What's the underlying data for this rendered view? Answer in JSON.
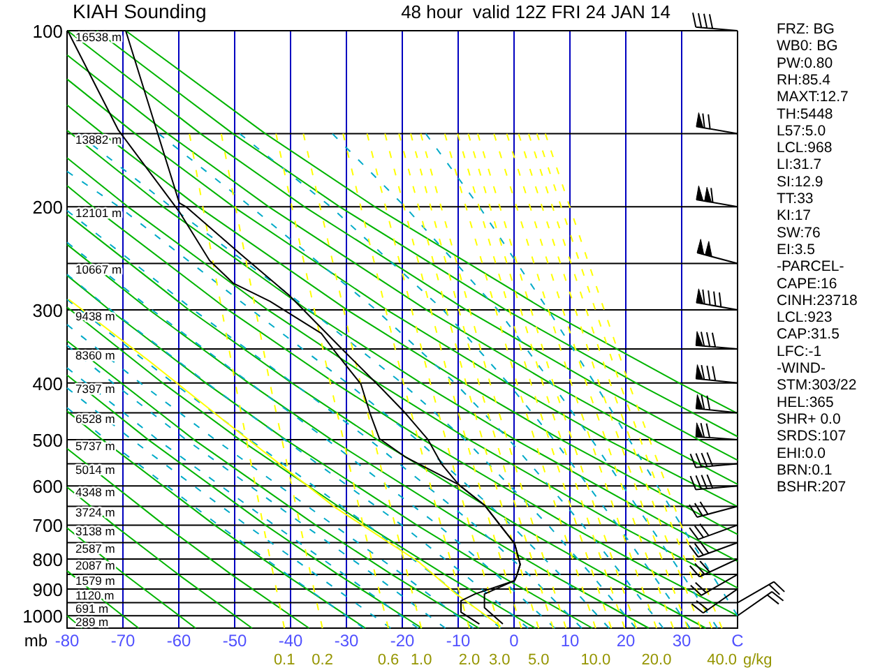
{
  "chart_data": {
    "type": "line",
    "title": "KIAH Sounding",
    "subtitle": "48 hour  valid 12Z FRI 24 JAN 14",
    "ylabel": "mb",
    "xlim": [
      -80,
      40
    ],
    "ylim": [
      1050,
      100
    ],
    "log": "y",
    "grid": "x",
    "xticks": [
      -80,
      -70,
      -60,
      -50,
      -40,
      -30,
      -20,
      -10,
      0,
      10,
      20,
      30,
      {
        "value": 40,
        "label": "C"
      }
    ],
    "yticks": [
      100,
      200,
      300,
      400,
      500,
      600,
      700,
      800,
      900,
      1000
    ],
    "series": [
      {
        "name": "16538 m",
        "color": "#000000",
        "x": [
          -80,
          40
        ],
        "values": [
          100,
          100
        ]
      },
      {
        "name": "13882 m",
        "color": "#000000",
        "x": [
          -80,
          40
        ],
        "values": [
          150,
          150
        ]
      },
      {
        "name": "12101 m",
        "color": "#000000",
        "x": [
          -80,
          40
        ],
        "values": [
          200,
          200
        ]
      },
      {
        "name": "10667 m",
        "color": "#000000",
        "x": [
          -80,
          40
        ],
        "values": [
          250,
          250
        ]
      },
      {
        "name": "9438 m",
        "color": "#000000",
        "x": [
          -80,
          40
        ],
        "values": [
          300,
          300
        ]
      },
      {
        "name": "8360 m",
        "color": "#000000",
        "x": [
          -80,
          40
        ],
        "values": [
          350,
          350
        ]
      },
      {
        "name": "7397 m",
        "color": "#000000",
        "x": [
          -80,
          40
        ],
        "values": [
          400,
          400
        ]
      },
      {
        "name": "6528 m",
        "color": "#000000",
        "x": [
          -80,
          40
        ],
        "values": [
          450,
          450
        ]
      },
      {
        "name": "5737 m",
        "color": "#000000",
        "x": [
          -80,
          40
        ],
        "values": [
          500,
          500
        ]
      },
      {
        "name": "5014 m",
        "color": "#000000",
        "x": [
          -80,
          40
        ],
        "values": [
          550,
          550
        ]
      },
      {
        "name": "4348 m",
        "color": "#000000",
        "x": [
          -80,
          40
        ],
        "values": [
          600,
          600
        ]
      },
      {
        "name": "3724 m",
        "color": "#000000",
        "x": [
          -80,
          40
        ],
        "values": [
          650,
          650
        ]
      },
      {
        "name": "3138 m",
        "color": "#000000",
        "x": [
          -80,
          40
        ],
        "values": [
          700,
          700
        ]
      },
      {
        "name": "2587 m",
        "color": "#000000",
        "x": [
          -80,
          40
        ],
        "values": [
          750,
          750
        ]
      },
      {
        "name": "2087 m",
        "color": "#000000",
        "x": [
          -80,
          40
        ],
        "values": [
          800,
          800
        ]
      },
      {
        "name": "1579 m",
        "color": "#000000",
        "x": [
          -80,
          40
        ],
        "values": [
          850,
          850
        ]
      },
      {
        "name": "1120 m",
        "color": "#000000",
        "x": [
          -80,
          40
        ],
        "values": [
          900,
          900
        ]
      },
      {
        "name": "691 m",
        "color": "#000000",
        "x": [
          -80,
          40
        ],
        "values": [
          950,
          950
        ]
      },
      {
        "name": "289 m",
        "color": "#000000",
        "x": [
          -80,
          40
        ],
        "values": [
          1000,
          1000
        ]
      },
      {
        "color": "#00b400",
        "x": [
          -80,
          -77.3
        ],
        "values": [
          1000,
          1050
        ]
      },
      {
        "color": "#00b400",
        "x": [
          -80,
          -73,
          -67.2
        ],
        "values": [
          838,
          950,
          1050
        ]
      },
      {
        "color": "#00b400",
        "x": [
          -80,
          -69.7,
          -57
        ],
        "values": [
          708,
          850,
          1050
        ]
      },
      {
        "color": "#00b400",
        "x": [
          -80,
          -71.6,
          -60.1,
          -46.9
        ],
        "values": [
          603,
          700,
          850,
          1050
        ]
      },
      {
        "color": "#00b400",
        "x": [
          -80,
          -62.6,
          -50.6,
          -36.7
        ],
        "values": [
          518,
          700,
          850,
          1050
        ]
      },
      {
        "color": "#00b400",
        "x": [
          -80,
          -73.7,
          -53.6,
          -41,
          -26.6
        ],
        "values": [
          447,
          500,
          700,
          850,
          1050
        ]
      },
      {
        "color": "#00b400",
        "x": [
          -80,
          -65.5,
          -44.5,
          -31.5,
          -16.5
        ],
        "values": [
          388,
          500,
          700,
          850,
          1050
        ]
      },
      {
        "color": "#00b400",
        "x": [
          -80,
          -57.3,
          -35.5,
          -21.9,
          -6.3
        ],
        "values": [
          339,
          500,
          700,
          850,
          1050
        ]
      },
      {
        "color": "#00b400",
        "x": [
          -80,
          -62.9,
          -49.1,
          -26.5,
          -12.4,
          3.8
        ],
        "values": [
          297,
          400,
          500,
          700,
          850,
          1050
        ]
      },
      {
        "color": "#00b400",
        "x": [
          -80,
          -72.4,
          -55.2,
          -40.9,
          -17.4,
          -2.9,
          14
        ],
        "values": [
          262,
          300,
          400,
          500,
          700,
          850,
          1050
        ]
      },
      {
        "color": "#00b400",
        "x": [
          -80,
          -65.3,
          -47.5,
          -32.7,
          -8.4,
          6.7,
          24.1
        ],
        "values": [
          232,
          300,
          400,
          500,
          700,
          850,
          1050
        ]
      },
      {
        "color": "#00b400",
        "x": [
          -80,
          -58.2,
          -39.8,
          -24.5,
          0.6,
          16.3,
          34.3
        ],
        "values": [
          206,
          300,
          400,
          500,
          700,
          850,
          1050
        ]
      },
      {
        "color": "#00b400",
        "x": [
          -80,
          -75.4,
          -51.2,
          -32.1,
          -16.3,
          9.7,
          25.8,
          40
        ],
        "values": [
          184,
          200,
          300,
          400,
          500,
          700,
          850,
          1000
        ]
      },
      {
        "color": "#00b400",
        "x": [
          -80,
          -69.1,
          -44.1,
          -24.4,
          -8.1,
          18.7,
          40
        ],
        "values": [
          165,
          200,
          300,
          400,
          500,
          700,
          896
        ]
      },
      {
        "color": "#00b400",
        "x": [
          -80,
          -62.8,
          -37,
          -16.7,
          0.2,
          27.7,
          40
        ],
        "values": [
          148,
          200,
          300,
          400,
          500,
          700,
          807
        ]
      },
      {
        "color": "#00b400",
        "x": [
          -80,
          -73.6,
          -56.5,
          -29.9,
          -9,
          8.4,
          36.8,
          40
        ],
        "values": [
          134,
          150,
          200,
          300,
          400,
          500,
          700,
          726
        ]
      },
      {
        "color": "#00b400",
        "x": [
          -80,
          -67.8,
          -50.2,
          -22.8,
          -1.3,
          16.6,
          40
        ],
        "values": [
          121,
          150,
          200,
          300,
          400,
          500,
          651
        ]
      },
      {
        "color": "#00b400",
        "x": [
          -80,
          -62,
          -43.9,
          -15.7,
          6.4,
          24.8,
          40
        ],
        "values": [
          110,
          150,
          200,
          300,
          400,
          500,
          596
        ]
      },
      {
        "color": "#00b400",
        "x": [
          -79.9,
          -56.1,
          -37.5,
          -8.6,
          14.1,
          33,
          40
        ],
        "values": [
          100,
          150,
          200,
          300,
          400,
          500,
          542
        ]
      },
      {
        "color": "#00b400",
        "x": [
          -74.7,
          -50.3,
          -31.2,
          -1.5,
          21.8,
          40
        ],
        "values": [
          100,
          150,
          200,
          300,
          400,
          494
        ]
      },
      {
        "color": "#00b400",
        "x": [
          -69.5,
          -44.5,
          -24.9,
          5.6,
          29.5,
          40
        ],
        "values": [
          100,
          150,
          200,
          300,
          400,
          451
        ]
      },
      {
        "color": "#00aac8",
        "line_style": "dashed",
        "x": [
          -80,
          -73,
          -52.9,
          -40.6,
          -26.9
        ],
        "values": [
          441,
          500,
          700,
          850,
          1050
        ]
      },
      {
        "color": "#00aac8",
        "line_style": "dashed",
        "x": [
          -80,
          -68.4,
          -47.9,
          -35.5,
          -22.1
        ],
        "values": [
          408,
          500,
          700,
          850,
          1050
        ]
      },
      {
        "color": "#00aac8",
        "line_style": "dashed",
        "x": [
          -80,
          -63.8,
          -42.9,
          -30.4,
          -17.2
        ],
        "values": [
          377,
          500,
          700,
          850,
          1050
        ]
      },
      {
        "color": "#00aac8",
        "line_style": "dashed",
        "x": [
          -80,
          -71.8,
          -58.7,
          -37.6,
          -25.2,
          -12.3
        ],
        "values": [
          345,
          400,
          500,
          700,
          850,
          1050
        ]
      },
      {
        "color": "#00aac8",
        "line_style": "dashed",
        "x": [
          -80,
          -66.9,
          -53.5,
          -32.3,
          -20,
          -7.3
        ],
        "values": [
          318,
          400,
          500,
          700,
          850,
          1050
        ]
      },
      {
        "color": "#00aac8",
        "line_style": "dashed",
        "x": [
          -80,
          -61,
          -47.3,
          -26.2,
          -14.5,
          -2.4
        ],
        "values": [
          288,
          400,
          500,
          700,
          850,
          1050
        ]
      },
      {
        "color": "#00aac8",
        "line_style": "dashed",
        "x": [
          -80,
          -72.2,
          -55,
          -41.1,
          -20.1,
          -8.9,
          2.5
        ],
        "values": [
          261,
          300,
          400,
          500,
          700,
          850,
          1050
        ]
      },
      {
        "color": "#00aac8",
        "line_style": "dashed",
        "x": [
          -80,
          -64.8,
          -47.3,
          -33.5,
          -13.6,
          -3.2,
          7.3
        ],
        "values": [
          230,
          300,
          400,
          500,
          700,
          850,
          1050
        ]
      },
      {
        "color": "#00aac8",
        "line_style": "dashed",
        "x": [
          -80,
          -57.4,
          -39.6,
          -25.9,
          -7,
          2.6,
          12.1
        ],
        "values": [
          203,
          300,
          400,
          500,
          700,
          850,
          1050
        ]
      },
      {
        "color": "#00aac8",
        "line_style": "dashed",
        "x": [
          -80,
          -70.7,
          -47,
          -29.9,
          -17.4,
          -0.5,
          8.2,
          17
        ],
        "values": [
          174,
          200,
          300,
          400,
          500,
          700,
          850,
          1050
        ]
      },
      {
        "color": "#00aac8",
        "line_style": "dashed",
        "x": [
          -78,
          -61.4,
          -36.6,
          -20.1,
          -8.8,
          6.1,
          13.8,
          21.8
        ],
        "values": [
          150,
          200,
          300,
          400,
          500,
          700,
          850,
          1050
        ]
      },
      {
        "color": "#00aac8",
        "line_style": "dashed",
        "x": [
          -63.6,
          -47.1,
          -24.7,
          -10.6,
          -0.9,
          12.3,
          19.3,
          26.7
        ],
        "values": [
          150,
          200,
          300,
          400,
          500,
          700,
          850,
          1050
        ]
      },
      {
        "color": "#00aac8",
        "line_style": "dashed",
        "x": [
          -49.1,
          -32.8,
          -12.7,
          -1.1,
          7.1,
          18.5,
          24.8,
          31.5
        ],
        "values": [
          150,
          200,
          300,
          400,
          500,
          700,
          850,
          1050
        ]
      },
      {
        "color": "#00aac8",
        "line_style": "dashed",
        "x": [
          -32.5,
          -19.5,
          -2.9,
          6.7,
          13.9,
          24.2,
          30.1,
          36.4
        ],
        "values": [
          150,
          200,
          300,
          400,
          500,
          700,
          850,
          1050
        ]
      },
      {
        "color": "#00aac8",
        "line_style": "dashed",
        "x": [
          -15.8,
          -6.2,
          6.1,
          14.4,
          20.6,
          29.9,
          35.4,
          40
        ],
        "values": [
          150,
          200,
          300,
          400,
          500,
          700,
          850,
          1000
        ]
      },
      {
        "name": "0.1",
        "color": "#ffff00",
        "line_style": "dashed",
        "x": [
          -41.1,
          -44.9,
          -49.9,
          -58.1
        ],
        "values": [
          1050,
          700,
          400,
          150
        ]
      },
      {
        "name": "0.2",
        "color": "#ffff00",
        "line_style": "dashed",
        "x": [
          -34.3,
          -38.3,
          -43.7,
          -52.4
        ],
        "values": [
          1050,
          700,
          400,
          150
        ]
      },
      {
        "name": "0.6",
        "color": "#ffff00",
        "line_style": "dashed",
        "x": [
          -22.5,
          -27,
          -32.9,
          -42.6
        ],
        "values": [
          1050,
          700,
          400,
          150
        ]
      },
      {
        "name": "1.0",
        "color": "#ffff00",
        "line_style": "dashed",
        "x": [
          -16.6,
          -21.3,
          -27.5,
          -37.7
        ],
        "values": [
          1050,
          700,
          400,
          150
        ]
      },
      {
        "name": "2.0",
        "color": "#ffff00",
        "line_style": "dashed",
        "x": [
          -8,
          -13.1,
          -19.8,
          -30.6
        ],
        "values": [
          1050,
          700,
          400,
          150
        ]
      },
      {
        "name": "3.0",
        "color": "#ffff00",
        "line_style": "dashed",
        "x": [
          -2.6,
          -8,
          -15,
          -26.3
        ],
        "values": [
          1050,
          700,
          400,
          150
        ]
      },
      {
        "color": "#ffff00",
        "line_style": "dashed",
        "x": [
          1.3,
          -4.2,
          -11.5,
          -23.1
        ],
        "values": [
          1050,
          700,
          400,
          150
        ]
      },
      {
        "name": "5.0",
        "color": "#ffff00",
        "line_style": "dashed",
        "x": [
          4.4,
          -1.2,
          -8.6,
          -20.6
        ],
        "values": [
          1050,
          700,
          400,
          150
        ]
      },
      {
        "color": "#ffff00",
        "line_style": "dashed",
        "x": [
          7,
          1.3,
          -6.3,
          -18.5
        ],
        "values": [
          1050,
          700,
          400,
          150
        ]
      },
      {
        "color": "#ffff00",
        "line_style": "dashed",
        "x": [
          9.3,
          3.4,
          -4.3,
          -16.7
        ],
        "values": [
          1050,
          700,
          400,
          150
        ]
      },
      {
        "name": "10.0",
        "color": "#ffff00",
        "line_style": "dashed",
        "x": [
          14.6,
          8.5,
          0.5,
          -12.4
        ],
        "values": [
          1050,
          700,
          400,
          150
        ]
      },
      {
        "color": "#ffff00",
        "line_style": "dashed",
        "x": [
          17.4,
          11.2,
          3,
          -10.1
        ],
        "values": [
          1050,
          700,
          400,
          150
        ]
      },
      {
        "color": "#ffff00",
        "line_style": "dashed",
        "x": [
          19.8,
          13.5,
          5.1,
          -8.2
        ],
        "values": [
          1050,
          700,
          400,
          150
        ]
      },
      {
        "color": "#ffff00",
        "line_style": "dashed",
        "x": [
          21.9,
          15.5,
          7,
          -6.5
        ],
        "values": [
          1050,
          700,
          400,
          150
        ]
      },
      {
        "name": "20.0",
        "color": "#ffff00",
        "line_style": "dashed",
        "x": [
          25.5,
          18.9,
          10.2,
          -3.6
        ],
        "values": [
          1050,
          700,
          400,
          150
        ]
      },
      {
        "color": "#ffff00",
        "line_style": "dashed",
        "x": [
          28.5,
          21.7,
          12.9,
          -1.3
        ],
        "values": [
          1050,
          700,
          400,
          150
        ]
      },
      {
        "color": "#ffff00",
        "line_style": "dashed",
        "x": [
          31.1,
          24.2,
          15.2,
          0.8
        ],
        "values": [
          1050,
          700,
          400,
          150
        ]
      },
      {
        "color": "#ffff00",
        "line_style": "dashed",
        "x": [
          33.4,
          26.3,
          17.2,
          2.6
        ],
        "values": [
          1050,
          700,
          400,
          150
        ]
      },
      {
        "color": "#ffff00",
        "line_style": "dashed",
        "x": [
          35.4,
          28.2,
          18.9,
          4.1
        ],
        "values": [
          1050,
          700,
          400,
          150
        ]
      },
      {
        "name": "40.0",
        "color": "#ffff00",
        "line_style": "dashed",
        "x": [
          37.2,
          29.9,
          20.5,
          5.6
        ],
        "values": [
          1050,
          700,
          400,
          150
        ]
      },
      {
        "color": "#ffff00",
        "x": [
          -79.7,
          -65.3,
          -52,
          -32,
          -17,
          -10.3,
          -2.4
        ],
        "values": [
          288,
          367,
          463,
          653,
          810,
          919,
          1042
        ]
      },
      {
        "color": "#000000",
        "x": [
          -69.5,
          -59.9,
          -58.7,
          -48.7,
          -40.3,
          -30.8,
          -23.7,
          -19.5,
          -15.4,
          -13,
          -9.9,
          -5.3,
          -2.5,
          0.1,
          1.1,
          0.5,
          0.1,
          -5.3,
          -5.3,
          -2
        ],
        "values": [
          100,
          197,
          200,
          242,
          283,
          350,
          409,
          450,
          500,
          550,
          597,
          647,
          700,
          753,
          817,
          853,
          871,
          918,
          969,
          1033
        ]
      },
      {
        "color": "#000000",
        "x": [
          -79.9,
          -70.8,
          -59.9,
          -54.5,
          -50.3,
          -43.7,
          -34.5,
          -32,
          -27.4,
          -25.8,
          -24.1,
          -19.5,
          -9.9,
          -5.3,
          -2.5,
          0.1,
          1.1,
          0.5,
          0.1,
          -7,
          -9.5,
          -9.5,
          -6.2
        ],
        "values": [
          100,
          148,
          204,
          247,
          270,
          290,
          329,
          354,
          402,
          450,
          498,
          535,
          597,
          647,
          700,
          753,
          817,
          853,
          871,
          918,
          943,
          986,
          1033
        ]
      }
    ],
    "annotations": [
      "g/kg",
      "FRZ: BG",
      "WB0: BG",
      "PW:0.80",
      "RH:85.4",
      "MAXT:12.7",
      "TH:5448",
      "L57:5.0",
      "LCL:968",
      "LI:31.7",
      "SI:12.9",
      "TT:33",
      "KI:17",
      "SW:76",
      "EI:3.5",
      "-PARCEL-",
      "CAPE:16",
      "CINH:23718",
      "LCL:923",
      "CAP:31.5",
      "LFC:-1",
      "-WIND-",
      "STM:303/22",
      "HEL:365",
      "SHR+ 0.0",
      "SRDS:107",
      "EHI:0.0",
      "BRN:0.1",
      "BSHR:207"
    ]
  }
}
